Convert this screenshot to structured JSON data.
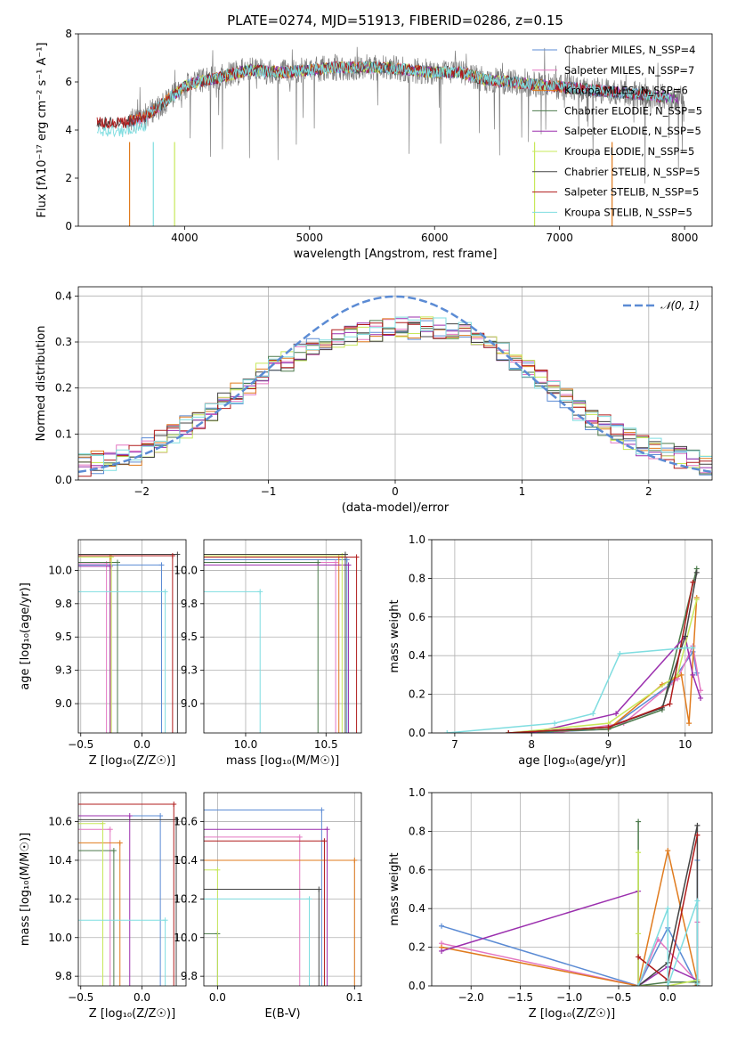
{
  "chart_data": [
    {
      "type": "line",
      "title": "PLATE=0274, MJD=51913, FIBERID=0286, z=0.15",
      "xlabel": "wavelength [Angstrom, rest frame]",
      "ylabel": "Flux [fλ10⁻¹⁷ erg cm⁻² s⁻¹ A⁻¹]",
      "xlim": [
        3150,
        8220
      ],
      "ylim": [
        0,
        8
      ],
      "xticks": [
        4000,
        5000,
        6000,
        7000,
        8000
      ],
      "yticks": [
        0,
        2,
        4,
        6,
        8
      ],
      "grid": false,
      "legend_position": "top-right",
      "series": [
        {
          "name": "Chabrier MILES, N_SSP=4",
          "color": "#5b8bd4"
        },
        {
          "name": "Salpeter MILES, N_SSP=7",
          "color": "#e377c2"
        },
        {
          "name": "Kroupa MILES, N_SSP=6",
          "color": "#e07b1e"
        },
        {
          "name": "Chabrier ELODIE, N_SSP=5",
          "color": "#4c7a4c"
        },
        {
          "name": "Salpeter ELODIE, N_SSP=5",
          "color": "#9b2fae"
        },
        {
          "name": "Kroupa ELODIE, N_SSP=5",
          "color": "#c7e85a"
        },
        {
          "name": "Chabrier STELIB, N_SSP=5",
          "color": "#444444"
        },
        {
          "name": "Salpeter STELIB, N_SSP=5",
          "color": "#b01c1c"
        },
        {
          "name": "Kroupa STELIB, N_SSP=5",
          "color": "#7fdde0"
        }
      ],
      "continuum": {
        "x": [
          3300,
          3500,
          3600,
          3700,
          3800,
          3900,
          4000,
          4100,
          4300,
          4500,
          4800,
          5000,
          5200,
          5400,
          5600,
          5800,
          6000,
          6200,
          6400,
          6600,
          6800,
          7000,
          7200,
          7400,
          7600,
          7800,
          8000
        ],
        "y": [
          4.3,
          4.3,
          4.4,
          4.6,
          5.0,
          5.4,
          5.8,
          6.0,
          6.2,
          6.5,
          6.4,
          6.5,
          6.6,
          6.6,
          6.6,
          6.5,
          6.4,
          6.4,
          6.1,
          6.0,
          5.9,
          5.8,
          5.7,
          5.6,
          5.5,
          5.4,
          5.3
        ]
      }
    },
    {
      "type": "line",
      "xlabel": "(data-model)/error",
      "ylabel": "Normed distribution",
      "xlim": [
        -2.5,
        2.5
      ],
      "ylim": [
        0,
        0.42
      ],
      "xticks": [
        -2,
        -1,
        0,
        1,
        2
      ],
      "yticks": [
        0.0,
        0.1,
        0.2,
        0.3,
        0.4
      ],
      "grid": true,
      "legend_position": "top-right",
      "legend": [
        "𝒩(0, 1)"
      ],
      "normal_curve": {
        "mean": 0,
        "sigma": 1,
        "color": "#5b8bd4"
      },
      "histogram_bin_width": 0.1,
      "histogram_envelope": {
        "x": [
          -2.5,
          -2.0,
          -1.5,
          -1.0,
          -0.5,
          0.0,
          0.5,
          1.0,
          1.5,
          2.0,
          2.5
        ],
        "y": [
          0.03,
          0.06,
          0.14,
          0.24,
          0.31,
          0.33,
          0.33,
          0.25,
          0.14,
          0.07,
          0.03
        ]
      }
    },
    {
      "type": "scatter",
      "xlabel": "Z [log₁₀(Z/Z☉)]",
      "ylabel": "age  [log₁₀(age/yr)]",
      "xlim": [
        -0.52,
        0.36
      ],
      "ylim": [
        8.78,
        10.23
      ],
      "xticks": [
        -0.5,
        0.0,
        0.5
      ],
      "yticks": [
        9.0,
        9.25,
        9.5,
        9.75,
        10.0
      ],
      "grid": true,
      "points": [
        {
          "x": 0.16,
          "y": 10.04,
          "color": "#5b8bd4"
        },
        {
          "x": -0.29,
          "y": 10.05,
          "color": "#e377c2"
        },
        {
          "x": -0.26,
          "y": 10.1,
          "color": "#e07b1e"
        },
        {
          "x": -0.2,
          "y": 10.06,
          "color": "#4c7a4c"
        },
        {
          "x": -0.26,
          "y": 10.03,
          "color": "#9b2fae"
        },
        {
          "x": -0.25,
          "y": 10.1,
          "color": "#c7e85a"
        },
        {
          "x": 0.29,
          "y": 10.12,
          "color": "#444444"
        },
        {
          "x": 0.25,
          "y": 10.11,
          "color": "#b01c1c"
        },
        {
          "x": 0.19,
          "y": 9.84,
          "color": "#7fdde0"
        }
      ]
    },
    {
      "type": "scatter",
      "xlabel": "mass [log₁₀(M/M☉)]",
      "xlim": [
        9.74,
        10.72
      ],
      "ylim": [
        8.78,
        10.23
      ],
      "xticks": [
        10.0,
        10.5
      ],
      "yticks": [
        9.0,
        9.25,
        9.5,
        9.75,
        10.0
      ],
      "grid": true,
      "points": [
        {
          "x": 10.63,
          "y": 10.08,
          "color": "#5b8bd4"
        },
        {
          "x": 10.56,
          "y": 10.06,
          "color": "#e377c2"
        },
        {
          "x": 10.58,
          "y": 10.1,
          "color": "#e07b1e"
        },
        {
          "x": 10.45,
          "y": 10.06,
          "color": "#4c7a4c"
        },
        {
          "x": 10.64,
          "y": 10.04,
          "color": "#9b2fae"
        },
        {
          "x": 10.6,
          "y": 10.11,
          "color": "#c7e85a"
        },
        {
          "x": 10.62,
          "y": 10.12,
          "color": "#444444"
        },
        {
          "x": 10.69,
          "y": 10.1,
          "color": "#b01c1c"
        },
        {
          "x": 10.09,
          "y": 9.84,
          "color": "#7fdde0"
        }
      ]
    },
    {
      "type": "line",
      "xlabel": "age  [log₁₀(age/yr)]",
      "ylabel": "mass weight",
      "xlim": [
        6.7,
        10.35
      ],
      "ylim": [
        0,
        1
      ],
      "xticks": [
        7,
        8,
        9,
        10
      ],
      "yticks": [
        0.0,
        0.2,
        0.4,
        0.6,
        0.8,
        1.0
      ],
      "grid": true,
      "series": [
        {
          "color": "#5b8bd4",
          "x": [
            8.0,
            9.0,
            9.8,
            10.1,
            10.15
          ],
          "y": [
            0.0,
            0.02,
            0.25,
            0.42,
            0.31
          ]
        },
        {
          "color": "#e377c2",
          "x": [
            8.3,
            9.2,
            9.9,
            10.1,
            10.2
          ],
          "y": [
            0.0,
            0.05,
            0.28,
            0.45,
            0.22
          ]
        },
        {
          "color": "#e07b1e",
          "x": [
            7.7,
            9.0,
            9.7,
            9.95,
            10.05,
            10.15
          ],
          "y": [
            0.0,
            0.02,
            0.25,
            0.3,
            0.05,
            0.7
          ]
        },
        {
          "color": "#4c7a4c",
          "x": [
            7.7,
            9.0,
            9.7,
            10.15
          ],
          "y": [
            0.0,
            0.02,
            0.12,
            0.85
          ]
        },
        {
          "color": "#9b2fae",
          "x": [
            8.0,
            9.1,
            10.0,
            10.1,
            10.2
          ],
          "y": [
            0.0,
            0.1,
            0.5,
            0.3,
            0.18
          ]
        },
        {
          "color": "#c7e85a",
          "x": [
            7.7,
            9.0,
            9.9,
            10.15
          ],
          "y": [
            0.0,
            0.05,
            0.3,
            0.69
          ]
        },
        {
          "color": "#444444",
          "x": [
            7.7,
            9.0,
            9.7,
            10.0,
            10.15
          ],
          "y": [
            0.0,
            0.03,
            0.13,
            0.5,
            0.83
          ]
        },
        {
          "color": "#b01c1c",
          "x": [
            7.7,
            9.0,
            9.8,
            10.1
          ],
          "y": [
            0.0,
            0.03,
            0.15,
            0.78
          ]
        },
        {
          "color": "#7fdde0",
          "x": [
            6.9,
            8.3,
            8.8,
            9.15,
            10.0,
            10.1
          ],
          "y": [
            0.0,
            0.05,
            0.1,
            0.41,
            0.44,
            0.44
          ]
        }
      ]
    },
    {
      "type": "scatter",
      "xlabel": "Z [log₁₀(Z/Z☉)]",
      "ylabel": "mass [log₁₀(M/M☉)]",
      "xlim": [
        -0.52,
        0.36
      ],
      "ylim": [
        9.75,
        10.75
      ],
      "xticks": [
        -0.5,
        0.0,
        0.5
      ],
      "yticks": [
        9.8,
        10.0,
        10.2,
        10.4,
        10.6
      ],
      "grid": true,
      "points": [
        {
          "x": 0.15,
          "y": 10.63,
          "color": "#5b8bd4"
        },
        {
          "x": -0.26,
          "y": 10.56,
          "color": "#e377c2"
        },
        {
          "x": -0.18,
          "y": 10.49,
          "color": "#e07b1e"
        },
        {
          "x": -0.23,
          "y": 10.45,
          "color": "#4c7a4c"
        },
        {
          "x": -0.1,
          "y": 10.63,
          "color": "#9b2fae"
        },
        {
          "x": -0.32,
          "y": 10.59,
          "color": "#c7e85a"
        },
        {
          "x": 0.28,
          "y": 10.61,
          "color": "#444444"
        },
        {
          "x": 0.26,
          "y": 10.69,
          "color": "#b01c1c"
        },
        {
          "x": 0.19,
          "y": 10.09,
          "color": "#7fdde0"
        }
      ]
    },
    {
      "type": "scatter",
      "xlabel": "E(B-V)",
      "xlim": [
        -0.01,
        0.105
      ],
      "ylim": [
        9.75,
        10.75
      ],
      "xticks": [
        0.0,
        0.1
      ],
      "yticks": [
        9.8,
        10.0,
        10.2,
        10.4,
        10.6
      ],
      "grid": true,
      "points": [
        {
          "x": 0.076,
          "y": 10.66,
          "color": "#5b8bd4"
        },
        {
          "x": 0.06,
          "y": 10.52,
          "color": "#e377c2"
        },
        {
          "x": 0.1,
          "y": 10.4,
          "color": "#e07b1e"
        },
        {
          "x": 0.0,
          "y": 10.02,
          "color": "#4c7a4c"
        },
        {
          "x": 0.08,
          "y": 10.56,
          "color": "#9b2fae"
        },
        {
          "x": 0.0,
          "y": 10.35,
          "color": "#c7e85a"
        },
        {
          "x": 0.074,
          "y": 10.25,
          "color": "#444444"
        },
        {
          "x": 0.078,
          "y": 10.5,
          "color": "#b01c1c"
        },
        {
          "x": 0.067,
          "y": 10.2,
          "color": "#7fdde0"
        }
      ]
    },
    {
      "type": "line",
      "xlabel": "Z [log₁₀(Z/Z☉)]",
      "ylabel": "mass weight",
      "xlim": [
        -2.4,
        0.45
      ],
      "ylim": [
        0,
        1
      ],
      "xticks": [
        -2.0,
        -1.5,
        -1.0,
        -0.5,
        0.0
      ],
      "yticks": [
        0.0,
        0.2,
        0.4,
        0.6,
        0.8,
        1.0
      ],
      "grid": true,
      "series": [
        {
          "color": "#5b8bd4",
          "x": [
            -2.3,
            -0.3,
            0.0,
            0.3,
            0.3
          ],
          "y": [
            0.31,
            0.0,
            0.3,
            0.0,
            0.65
          ]
        },
        {
          "color": "#e377c2",
          "x": [
            -2.3,
            -0.3,
            -0.1,
            0.3,
            0.3
          ],
          "y": [
            0.22,
            0.0,
            0.24,
            0.02,
            0.33
          ]
        },
        {
          "color": "#e07b1e",
          "x": [
            -2.3,
            -0.3,
            0.0,
            0.3,
            0.28
          ],
          "y": [
            0.2,
            0.0,
            0.7,
            0.02,
            0.0
          ]
        },
        {
          "color": "#4c7a4c",
          "x": [
            -0.3,
            -0.3,
            0.0,
            0.3
          ],
          "y": [
            0.85,
            0.0,
            0.02,
            0.02
          ]
        },
        {
          "color": "#9b2fae",
          "x": [
            -2.3,
            -0.3,
            -0.3,
            0.0,
            0.3
          ],
          "y": [
            0.18,
            0.49,
            0.0,
            0.1,
            0.03
          ]
        },
        {
          "color": "#c7e85a",
          "x": [
            -0.3,
            -0.3,
            -0.3,
            0.0,
            0.3
          ],
          "y": [
            0.69,
            0.27,
            0.0,
            0.0,
            0.03
          ]
        },
        {
          "color": "#444444",
          "x": [
            -0.3,
            0.0,
            0.3,
            0.3
          ],
          "y": [
            0.0,
            0.12,
            0.83,
            0.0
          ]
        },
        {
          "color": "#b01c1c",
          "x": [
            -0.3,
            0.0,
            0.3
          ],
          "y": [
            0.15,
            0.03,
            0.78
          ]
        },
        {
          "color": "#7fdde0",
          "x": [
            -0.3,
            0.0,
            0.0,
            0.3,
            0.3
          ],
          "y": [
            0.0,
            0.4,
            0.0,
            0.44,
            0.01
          ]
        }
      ]
    }
  ]
}
